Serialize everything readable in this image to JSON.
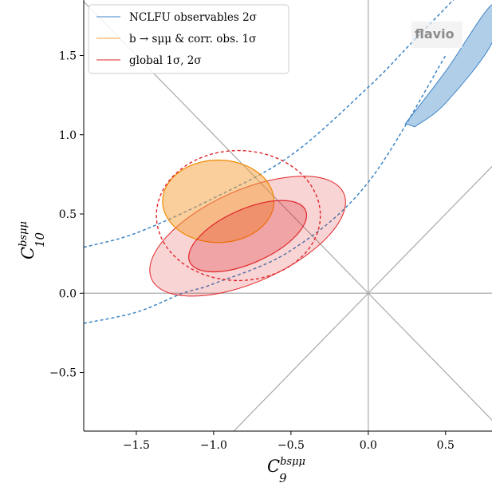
{
  "chart_data": {
    "type": "contour",
    "xlabel": {
      "base": "C",
      "sub": "9",
      "sup": "bsμμ"
    },
    "ylabel": {
      "base": "C",
      "sub": "10",
      "sup": "bsμμ"
    },
    "xlim": [
      -1.84,
      0.8
    ],
    "ylim": [
      -0.87,
      1.85
    ],
    "xticks": [
      -1.5,
      -1.0,
      -0.5,
      0.0,
      0.5
    ],
    "xtick_labels": [
      "−1.5",
      "−1.0",
      "−0.5",
      "0.0",
      "0.5"
    ],
    "yticks": [
      -0.5,
      0.0,
      0.5,
      1.0,
      1.5
    ],
    "ytick_labels": [
      "−0.5",
      "0.0",
      "0.5",
      "1.0",
      "1.5"
    ],
    "grid": false,
    "reference_lines": [
      "C10=0",
      "C9=0",
      "C10=-C9",
      "C10=C9"
    ],
    "watermark": "flavio",
    "legend_position": "top-left",
    "legend": [
      {
        "label": "NCLFU observables 2σ",
        "color": "#3d85c6"
      },
      {
        "label": "b → sμμ & corr. obs. 1σ",
        "color": "#f5a03a"
      },
      {
        "label": "global 1σ, 2σ",
        "color": "#e0262a"
      }
    ],
    "series": [
      {
        "name": "NCLFU observables 2σ",
        "kind": "filled-contour",
        "color": "#3d85c6",
        "shape": "elongated band",
        "approx_vertices": [
          [
            0.24,
            1.07
          ],
          [
            0.5,
            1.4
          ],
          [
            0.8,
            1.82
          ],
          [
            0.8,
            1.58
          ],
          [
            0.5,
            1.2
          ],
          [
            0.3,
            1.05
          ]
        ]
      },
      {
        "name": "NCLFU observables 2σ",
        "kind": "dashed-boundary",
        "color": "#3d85c6",
        "upper_curve": [
          [
            -1.84,
            0.29
          ],
          [
            -1.5,
            0.38
          ],
          [
            -1.0,
            0.6
          ],
          [
            -0.5,
            0.87
          ],
          [
            0.0,
            1.3
          ],
          [
            0.3,
            1.6
          ],
          [
            0.6,
            1.9
          ]
        ],
        "lower_curve": [
          [
            -1.84,
            -0.19
          ],
          [
            -1.5,
            -0.12
          ],
          [
            -1.2,
            0.0
          ],
          [
            -1.0,
            0.06
          ],
          [
            -0.5,
            0.27
          ],
          [
            0.0,
            0.7
          ],
          [
            0.5,
            1.5
          ]
        ]
      },
      {
        "name": "b → sμμ & corr. obs. 1σ",
        "kind": "ellipse",
        "color": "#f5a03a",
        "filled": true,
        "center": [
          -0.97,
          0.58
        ],
        "semi_axes": [
          0.36,
          0.26
        ]
      },
      {
        "name": "b → sμμ & corr. obs. 2σ",
        "kind": "ellipse",
        "color": "#e0262a",
        "filled": false,
        "dashed": true,
        "center": [
          -0.84,
          0.49
        ],
        "semi_axes": [
          0.53,
          0.41
        ]
      },
      {
        "name": "global 1σ",
        "kind": "ellipse",
        "color": "#e0262a",
        "filled": true,
        "center": [
          -0.78,
          0.36
        ],
        "semi_axes": [
          0.41,
          0.17
        ],
        "rotation_deg": 24
      },
      {
        "name": "global 2σ",
        "kind": "ellipse",
        "color": "#e0262a",
        "filled": true,
        "center": [
          -0.78,
          0.36
        ],
        "semi_axes": [
          0.68,
          0.29
        ],
        "rotation_deg": 24
      }
    ]
  }
}
